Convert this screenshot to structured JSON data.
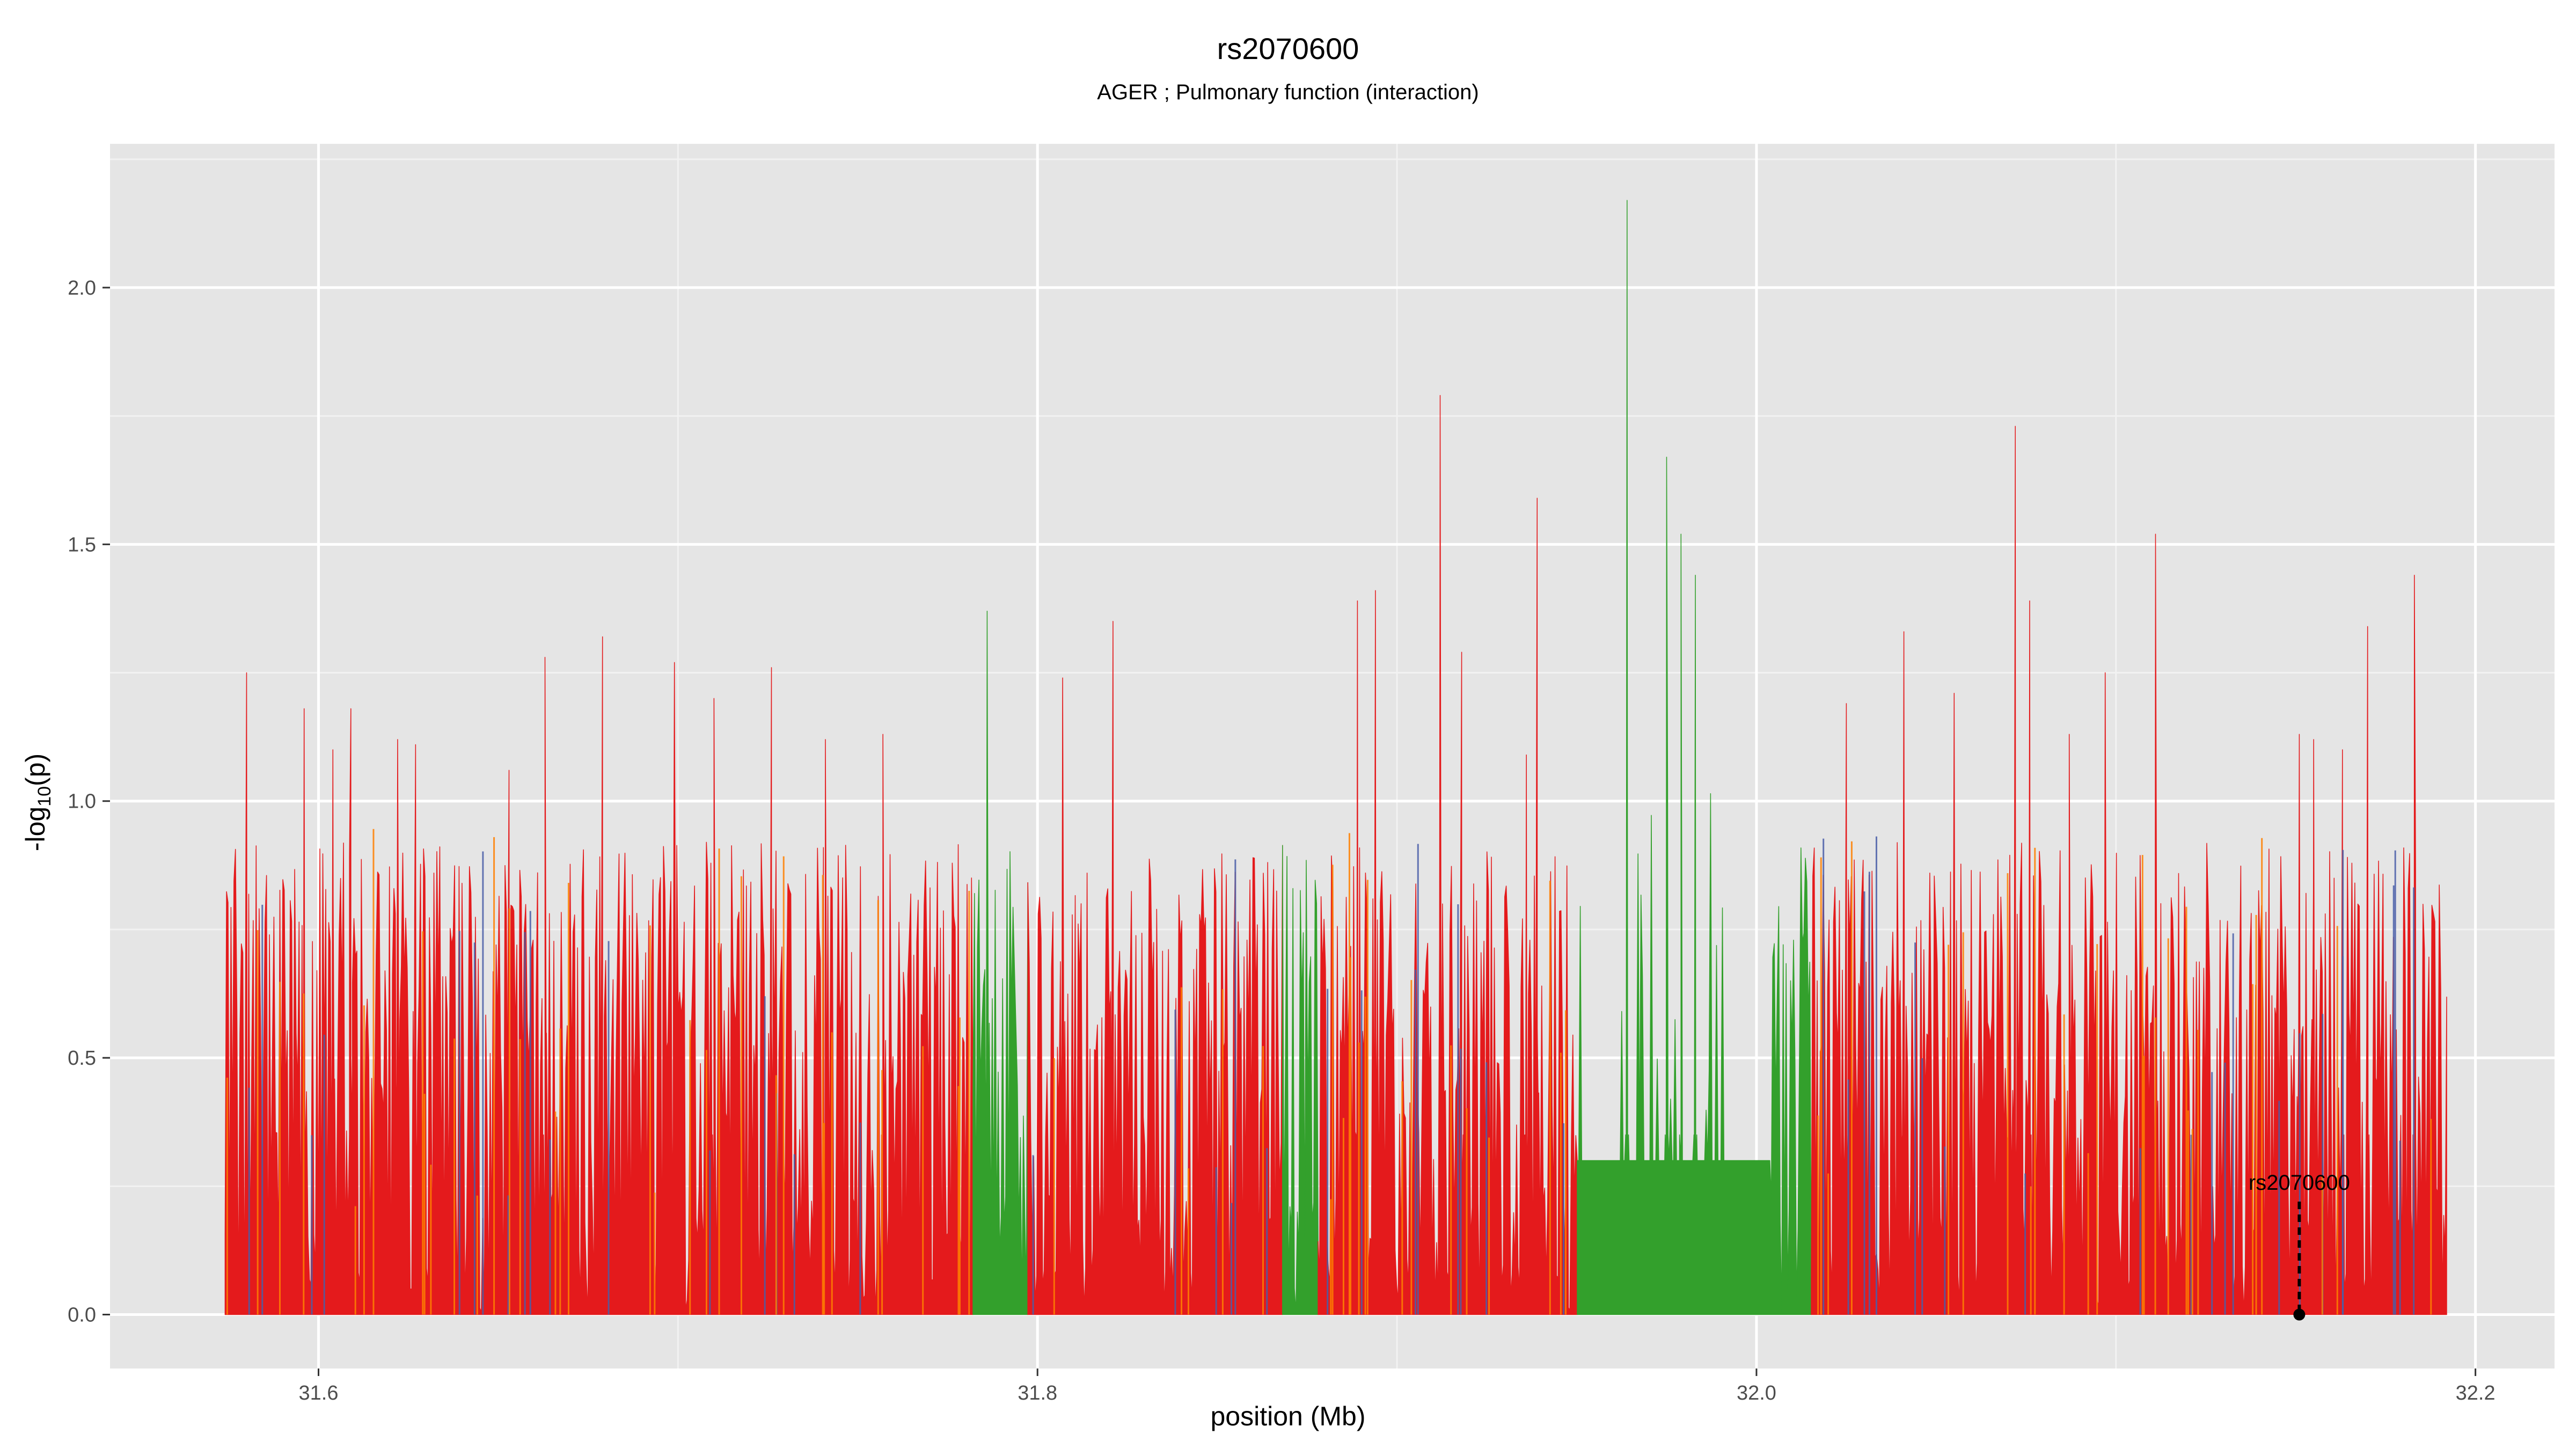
{
  "chart_data": {
    "type": "area",
    "title": "rs2070600",
    "subtitle": "AGER ; Pulmonary function (interaction)",
    "xlabel": "position (Mb)",
    "ylabel_prefix": "-log",
    "ylabel_sub": "10",
    "ylabel_suffix": "(p)",
    "xlim": [
      31.542,
      32.222
    ],
    "ylim": [
      -0.105,
      2.28
    ],
    "x_ticks": [
      "31.6",
      "31.8",
      "32.0",
      "32.2"
    ],
    "x_tick_values": [
      31.6,
      31.8,
      32.0,
      32.2
    ],
    "y_ticks": [
      "0.0",
      "0.5",
      "1.0",
      "1.5",
      "2.0"
    ],
    "y_tick_values": [
      0.0,
      0.5,
      1.0,
      1.5,
      2.0
    ],
    "grid": true,
    "data_range": [
      31.574,
      32.192
    ],
    "colors": {
      "panel": "#e5e5e5",
      "grid_major": "#ffffff",
      "red": "#e41a1c",
      "green": "#33a02c",
      "orange": "#ff7f00",
      "blue": "#4a5fa8"
    },
    "green_segments": [
      [
        31.782,
        31.797
      ],
      [
        31.868,
        31.878
      ],
      [
        31.95,
        32.015
      ]
    ],
    "plateau": {
      "x_start": 31.95,
      "x_end": 32.004,
      "y": 0.3
    },
    "peaks": [
      {
        "x": 31.58,
        "y": 1.25
      },
      {
        "x": 31.596,
        "y": 1.18
      },
      {
        "x": 31.604,
        "y": 1.1
      },
      {
        "x": 31.609,
        "y": 1.18
      },
      {
        "x": 31.622,
        "y": 1.12
      },
      {
        "x": 31.627,
        "y": 1.11
      },
      {
        "x": 31.653,
        "y": 1.06
      },
      {
        "x": 31.663,
        "y": 1.28
      },
      {
        "x": 31.679,
        "y": 1.32
      },
      {
        "x": 31.699,
        "y": 1.27
      },
      {
        "x": 31.71,
        "y": 1.2
      },
      {
        "x": 31.726,
        "y": 1.26
      },
      {
        "x": 31.741,
        "y": 1.12
      },
      {
        "x": 31.757,
        "y": 1.13
      },
      {
        "x": 31.786,
        "y": 1.37
      },
      {
        "x": 31.807,
        "y": 1.24
      },
      {
        "x": 31.821,
        "y": 1.35
      },
      {
        "x": 31.889,
        "y": 1.39
      },
      {
        "x": 31.894,
        "y": 1.41
      },
      {
        "x": 31.912,
        "y": 1.79
      },
      {
        "x": 31.918,
        "y": 1.29
      },
      {
        "x": 31.936,
        "y": 1.09
      },
      {
        "x": 31.939,
        "y": 1.59
      },
      {
        "x": 31.964,
        "y": 2.17
      },
      {
        "x": 31.975,
        "y": 1.67
      },
      {
        "x": 31.979,
        "y": 1.52
      },
      {
        "x": 31.983,
        "y": 1.44
      },
      {
        "x": 32.025,
        "y": 1.19
      },
      {
        "x": 32.041,
        "y": 1.33
      },
      {
        "x": 32.055,
        "y": 1.21
      },
      {
        "x": 32.072,
        "y": 1.73
      },
      {
        "x": 32.076,
        "y": 1.39
      },
      {
        "x": 32.087,
        "y": 1.13
      },
      {
        "x": 32.097,
        "y": 1.25
      },
      {
        "x": 32.111,
        "y": 1.52
      },
      {
        "x": 32.151,
        "y": 1.13
      },
      {
        "x": 32.155,
        "y": 1.12
      },
      {
        "x": 32.163,
        "y": 1.1
      },
      {
        "x": 32.17,
        "y": 1.34
      },
      {
        "x": 32.183,
        "y": 1.44
      }
    ],
    "snp": {
      "label": "rs2070600",
      "x": 32.151,
      "y": 0.0,
      "label_y": 0.22
    }
  }
}
